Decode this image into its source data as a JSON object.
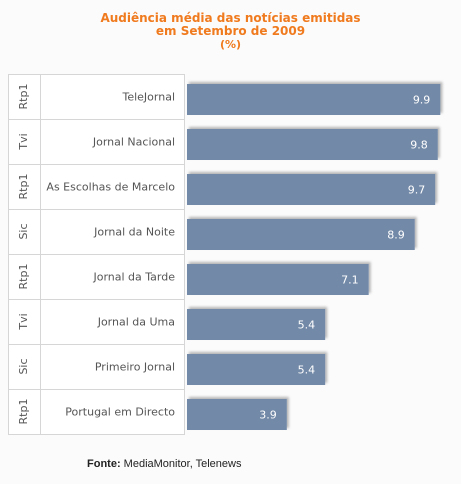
{
  "chart_data": {
    "type": "bar",
    "orientation": "horizontal",
    "title_line1": "Audiência média das notícias emitidas",
    "title_line2": "em Setembro de 2009",
    "unit": "(%)",
    "channels": [
      "Rtp1",
      "Tvi",
      "Rtp1",
      "Sic",
      "Rtp1",
      "Tvi",
      "Sic",
      "Rtp1"
    ],
    "categories": [
      "TeleJornal",
      "Jornal Nacional",
      "As Escolhas de Marcelo",
      "Jornal da Noite",
      "Jornal da Tarde",
      "Jornal da Uma",
      "Primeiro Jornal",
      "Portugal em Directo"
    ],
    "values": [
      9.9,
      9.8,
      9.7,
      8.9,
      7.1,
      5.4,
      5.4,
      3.9
    ],
    "value_labels": [
      "9.9",
      "9.8",
      "9.7",
      "8.9",
      "7.1",
      "5.4",
      "5.4",
      "3.9"
    ],
    "xlim": [
      0,
      10.2
    ],
    "grid": false,
    "legend": "none",
    "bar_color": "#7289a7",
    "value_label_color": "#ffffff"
  },
  "source": {
    "label": "Fonte:",
    "text": "MediaMonitor, Telenews"
  },
  "title_color": "#f07a1e"
}
